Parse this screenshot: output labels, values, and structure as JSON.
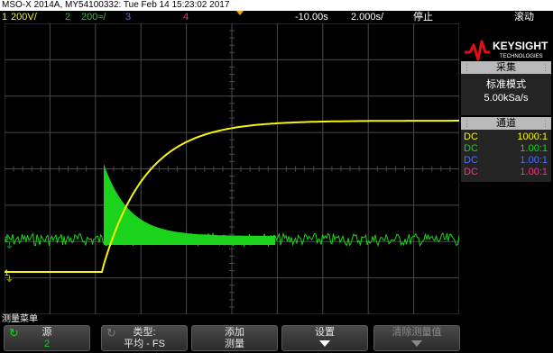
{
  "header": {
    "title": "MSO-X 2014A, MY54100332: Tue Feb 14 15:23:02 2017"
  },
  "status": {
    "ch1": "1",
    "ch1_scale": "200V/",
    "ch2": "2",
    "ch2_scale": "200≈/",
    "ch3": "3",
    "ch4": "4",
    "delay": "-10.00s",
    "timebase": "2.000s/",
    "run_state": "停止",
    "mode": "滚动"
  },
  "colors": {
    "ch1": "#f6f60b",
    "ch2": "#1bd31b",
    "ch3": "#4f6dff",
    "ch4": "#ff2f86",
    "grid": "#4a4a4a",
    "trigger": "#ff9d00"
  },
  "plot": {
    "ch1_marker": "1",
    "ch2_marker": "2"
  },
  "logo": {
    "brand": "KEYSIGHT",
    "sub": "TECHNOLOGIES"
  },
  "acquire": {
    "title": "采集",
    "mode": "标准模式",
    "rate": "5.00kSa/s"
  },
  "channels": {
    "title": "通道",
    "rows": [
      {
        "coupling": "DC",
        "probe": "1000:1"
      },
      {
        "coupling": "DC",
        "probe": "1.00:1"
      },
      {
        "coupling": "DC",
        "probe": "1.00:1"
      },
      {
        "coupling": "DC",
        "probe": "1.00:1"
      }
    ]
  },
  "menu": {
    "title": "测量菜单",
    "source_label": "源",
    "source_value": "2",
    "type_label": "类型:",
    "type_value": "平均 - FS",
    "add_label": "添加",
    "add_sub": "测量",
    "settings_label": "设置",
    "clear_label": "清除测量值"
  }
}
